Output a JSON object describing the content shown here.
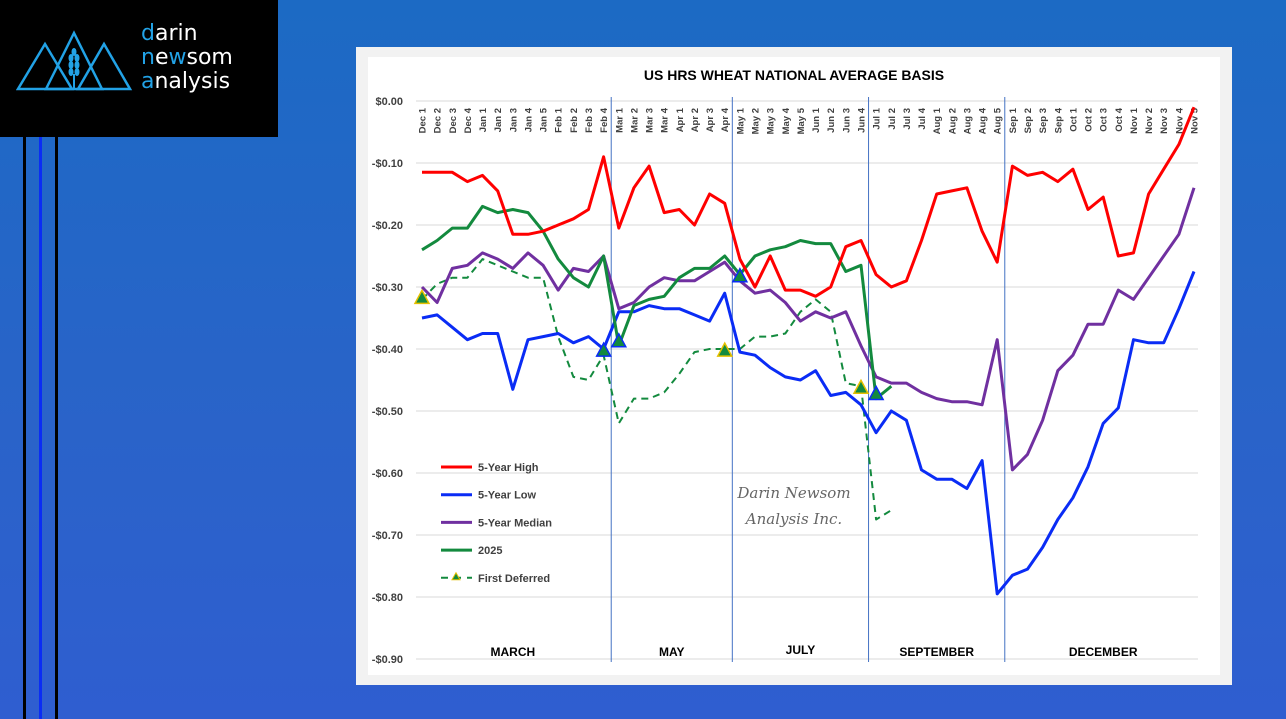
{
  "brand": {
    "line1": {
      "first": "d",
      "rest": "arin"
    },
    "line2": {
      "first": "n",
      "mid_plain": "e",
      "mid_hl": "w",
      "rest": "som"
    },
    "line3": {
      "first": "a",
      "rest": "nalysis"
    },
    "accent_color": "#22a2e6",
    "logo_icon": "mountain-wheat-icon"
  },
  "chart_data": {
    "type": "line",
    "title": "US HRS WHEAT NATIONAL AVERAGE BASIS",
    "xlabel": "",
    "ylabel": "",
    "ylim": [
      -0.9,
      0.0
    ],
    "yticks": [
      0.0,
      -0.1,
      -0.2,
      -0.3,
      -0.4,
      -0.5,
      -0.6,
      -0.7,
      -0.8,
      -0.9
    ],
    "ytick_labels": [
      "$0.00",
      "-$0.10",
      "-$0.20",
      "-$0.30",
      "-$0.40",
      "-$0.50",
      "-$0.60",
      "-$0.70",
      "-$0.80",
      "-$0.90"
    ],
    "grid": true,
    "legend_position": "bottom-left",
    "categories": [
      "Dec 1",
      "Dec 2",
      "Dec 3",
      "Dec 4",
      "Jan 1",
      "Jan 2",
      "Jan 3",
      "Jan 4",
      "Jan 5",
      "Feb 1",
      "Feb 2",
      "Feb 3",
      "Feb 4",
      "Mar 1",
      "Mar 2",
      "Mar 3",
      "Mar 4",
      "Apr 1",
      "Apr 2",
      "Apr 3",
      "Apr 4",
      "May 1",
      "May 2",
      "May 3",
      "May 4",
      "May 5",
      "Jun 1",
      "Jun 2",
      "Jun 3",
      "Jun 4",
      "Jul 1",
      "Jul 2",
      "Jul 3",
      "Jul 4",
      "Aug 1",
      "Aug 2",
      "Aug 3",
      "Aug 4",
      "Aug 5",
      "Sep 1",
      "Sep 2",
      "Sep 3",
      "Sep 4",
      "Oct 1",
      "Oct 2",
      "Oct 3",
      "Oct 4",
      "Nov 1",
      "Nov 2",
      "Nov 3",
      "Nov 4",
      "Nov 5"
    ],
    "contract_periods": [
      {
        "label": "MARCH",
        "start": "Dec 1",
        "end": "Feb 4"
      },
      {
        "label": "MAY",
        "start": "Mar 1",
        "end": "Apr 4"
      },
      {
        "label": "JULY",
        "start": "May 1",
        "end": "Jun 4"
      },
      {
        "label": "SEPTEMBER",
        "start": "Jul 1",
        "end": "Aug 5"
      },
      {
        "label": "DECEMBER",
        "start": "Sep 1",
        "end": "Nov 5"
      }
    ],
    "watermark": [
      "Darin Newsom",
      "Analysis Inc."
    ],
    "series": [
      {
        "name": "5-Year High",
        "color": "#ff0000",
        "style": "solid",
        "values": [
          -0.115,
          -0.115,
          -0.115,
          -0.13,
          -0.12,
          -0.145,
          -0.215,
          -0.215,
          -0.21,
          -0.2,
          -0.19,
          -0.175,
          -0.09,
          -0.205,
          -0.14,
          -0.105,
          -0.18,
          -0.175,
          -0.2,
          -0.15,
          -0.165,
          -0.255,
          -0.3,
          -0.25,
          -0.305,
          -0.305,
          -0.315,
          -0.3,
          -0.235,
          -0.225,
          -0.28,
          -0.3,
          -0.29,
          -0.225,
          -0.15,
          -0.145,
          -0.14,
          -0.21,
          -0.26,
          -0.105,
          -0.12,
          -0.115,
          -0.13,
          -0.11,
          -0.175,
          -0.155,
          -0.25,
          -0.245,
          -0.15,
          -0.11,
          -0.07,
          -0.01
        ]
      },
      {
        "name": "5-Year Low",
        "color": "#0a2cf5",
        "style": "solid",
        "values": [
          -0.35,
          -0.345,
          -0.365,
          -0.385,
          -0.375,
          -0.375,
          -0.465,
          -0.385,
          -0.38,
          -0.375,
          -0.39,
          -0.38,
          -0.4,
          -0.34,
          -0.34,
          -0.33,
          -0.335,
          -0.335,
          -0.345,
          -0.355,
          -0.31,
          -0.405,
          -0.41,
          -0.43,
          -0.445,
          -0.45,
          -0.435,
          -0.475,
          -0.47,
          -0.49,
          -0.535,
          -0.5,
          -0.515,
          -0.595,
          -0.61,
          -0.61,
          -0.625,
          -0.58,
          -0.795,
          -0.765,
          -0.755,
          -0.72,
          -0.675,
          -0.64,
          -0.59,
          -0.52,
          -0.495,
          -0.385,
          -0.39,
          -0.39,
          -0.335,
          -0.275
        ]
      },
      {
        "name": "5-Year Median",
        "color": "#7030a0",
        "style": "solid",
        "values": [
          -0.3,
          -0.325,
          -0.27,
          -0.265,
          -0.245,
          -0.255,
          -0.27,
          -0.245,
          -0.265,
          -0.305,
          -0.27,
          -0.275,
          -0.25,
          -0.335,
          -0.325,
          -0.3,
          -0.285,
          -0.29,
          -0.29,
          -0.275,
          -0.26,
          -0.29,
          -0.31,
          -0.305,
          -0.325,
          -0.355,
          -0.34,
          -0.35,
          -0.34,
          -0.395,
          -0.445,
          -0.455,
          -0.455,
          -0.47,
          -0.48,
          -0.485,
          -0.485,
          -0.49,
          -0.385,
          -0.595,
          -0.57,
          -0.515,
          -0.435,
          -0.41,
          -0.36,
          -0.36,
          -0.305,
          -0.32,
          -0.285,
          -0.25,
          -0.215,
          -0.14
        ]
      },
      {
        "name": "2025",
        "color": "#138a3e",
        "style": "solid",
        "values": [
          -0.24,
          -0.225,
          -0.205,
          -0.205,
          -0.17,
          -0.18,
          -0.175,
          -0.18,
          -0.21,
          -0.255,
          -0.285,
          -0.3,
          -0.25,
          -0.395,
          -0.33,
          -0.32,
          -0.315,
          -0.285,
          -0.27,
          -0.27,
          -0.25,
          -0.28,
          -0.25,
          -0.24,
          -0.235,
          -0.225,
          -0.23,
          -0.23,
          -0.275,
          -0.265,
          -0.48,
          -0.46,
          null,
          null,
          null,
          null,
          null,
          null,
          null,
          null,
          null,
          null,
          null,
          null,
          null,
          null,
          null,
          null,
          null,
          null,
          null,
          null
        ],
        "markers": [
          {
            "category": "Feb 4",
            "value": -0.405
          },
          {
            "category": "Mar 1",
            "value": -0.39
          },
          {
            "category": "May 1",
            "value": -0.285
          },
          {
            "category": "Jul 1",
            "value": -0.475
          }
        ]
      },
      {
        "name": "First Deferred",
        "color": "#138a3e",
        "style": "dashed",
        "values": [
          -0.32,
          -0.295,
          -0.285,
          -0.285,
          -0.255,
          -0.265,
          -0.275,
          -0.285,
          -0.285,
          -0.38,
          -0.445,
          -0.45,
          -0.41,
          -0.52,
          -0.48,
          -0.48,
          -0.47,
          -0.44,
          -0.405,
          -0.4,
          -0.4,
          -0.4,
          -0.38,
          -0.38,
          -0.375,
          -0.34,
          -0.32,
          -0.34,
          -0.455,
          -0.46,
          -0.675,
          -0.66,
          null,
          null,
          null,
          null,
          null,
          null,
          null,
          null,
          null,
          null,
          null,
          null,
          null,
          null,
          null,
          null,
          null,
          null,
          null,
          null
        ],
        "markers": [
          {
            "category": "Dec 1",
            "value": -0.32
          },
          {
            "category": "Apr 4",
            "value": -0.405
          },
          {
            "category": "Jun 4",
            "value": -0.465
          }
        ],
        "marker_color": "#138a3e",
        "marker_edge": "#e6c000"
      }
    ]
  }
}
